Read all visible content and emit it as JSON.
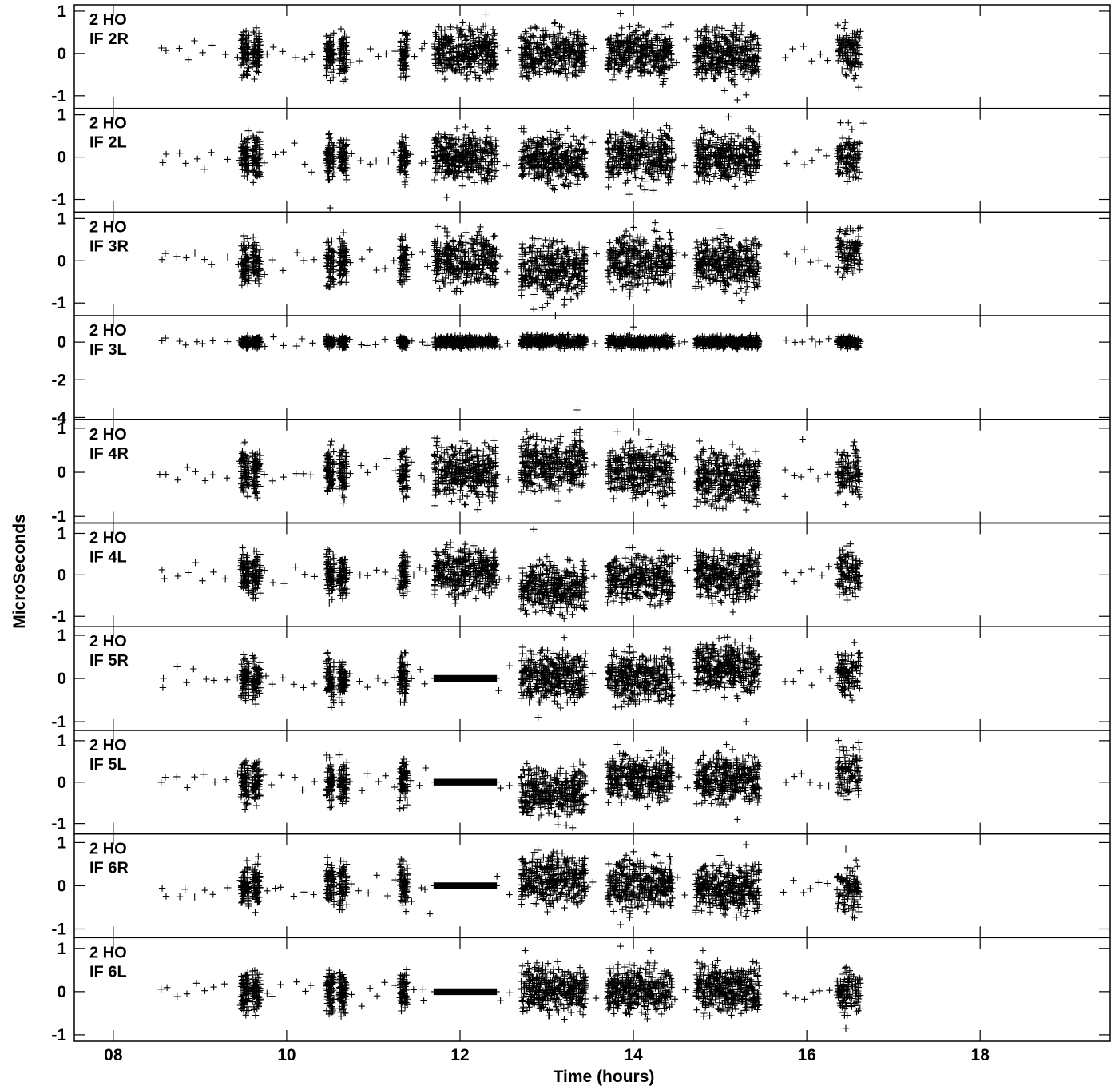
{
  "chart_data": {
    "type": "scatter",
    "marker": "plus",
    "xlabel": "Time (hours)",
    "ylabel": "MicroSeconds",
    "xlim": [
      7.55,
      19.5
    ],
    "x_ticks": [
      8,
      10,
      12,
      14,
      16,
      18
    ],
    "x_tick_labels": [
      "08",
      "10",
      "12",
      "14",
      "16",
      "18"
    ],
    "grid": false,
    "legend": "none",
    "panels": [
      {
        "label_line1": "2 HO",
        "label_line2": "IF 2R",
        "ylim": [
          -1.3,
          1.15
        ],
        "y_ticks": [
          -1,
          0,
          1
        ],
        "y_tick_labels": [
          "-1",
          "0",
          "1"
        ],
        "spread": 0.28,
        "scan_offsets": [
          0,
          0,
          0,
          0,
          0
        ],
        "flat_scan": false,
        "outliers": [
          [
            12.3,
            0.93
          ],
          [
            13.85,
            0.95
          ],
          [
            15.05,
            -0.88
          ],
          [
            15.2,
            -1.1
          ],
          [
            15.3,
            -0.98
          ],
          [
            16.6,
            -0.8
          ]
        ]
      },
      {
        "label_line1": "2 HO",
        "label_line2": "IF 2L",
        "ylim": [
          -1.3,
          1.15
        ],
        "y_ticks": [
          -1,
          0,
          1
        ],
        "y_tick_labels": [
          "-1",
          "0",
          "1"
        ],
        "spread": 0.28,
        "scan_offsets": [
          0,
          -0.05,
          0,
          0,
          0
        ],
        "flat_scan": false,
        "outliers": [
          [
            10.5,
            -1.2
          ],
          [
            11.85,
            -0.95
          ],
          [
            15.1,
            0.95
          ],
          [
            16.65,
            0.8
          ],
          [
            13.95,
            -0.88
          ]
        ]
      },
      {
        "label_line1": "2 HO",
        "label_line2": "IF 3R",
        "ylim": [
          -1.3,
          1.15
        ],
        "y_ticks": [
          -1,
          0,
          1
        ],
        "y_tick_labels": [
          "-1",
          "0",
          "1"
        ],
        "spread": 0.3,
        "scan_offsets": [
          0,
          -0.2,
          0,
          -0.05,
          0.2
        ],
        "flat_scan": false,
        "outliers": [
          [
            12.85,
            -1.15
          ],
          [
            12.95,
            -1.1
          ],
          [
            13.2,
            -1.05
          ],
          [
            14.25,
            0.9
          ],
          [
            15.25,
            -0.95
          ]
        ]
      },
      {
        "label_line1": "2 HO",
        "label_line2": "IF 3L",
        "ylim": [
          -4.1,
          1.4
        ],
        "y_ticks": [
          -4,
          -2,
          0
        ],
        "y_tick_labels": [
          "-4",
          "-2",
          "0"
        ],
        "spread": 0.15,
        "scan_offsets": [
          0,
          0.05,
          0,
          0,
          0
        ],
        "flat_scan": false,
        "outliers": [
          [
            13.1,
            1.4
          ],
          [
            14.0,
            0.8
          ],
          [
            16.1,
            -0.1
          ],
          [
            13.35,
            -3.6
          ]
        ]
      },
      {
        "label_line1": "2 HO",
        "label_line2": "IF 4R",
        "ylim": [
          -1.15,
          1.2
        ],
        "y_ticks": [
          -1,
          0,
          1
        ],
        "y_tick_labels": [
          "-1",
          "0",
          "1"
        ],
        "spread": 0.3,
        "scan_offsets": [
          0,
          0.18,
          0.05,
          -0.1,
          0
        ],
        "flat_scan": false,
        "outliers": [
          [
            15.95,
            0.75
          ],
          [
            15.75,
            -0.55
          ],
          [
            15.3,
            -0.85
          ],
          [
            14.35,
            -0.75
          ]
        ]
      },
      {
        "label_line1": "2 HO",
        "label_line2": "IF 4L",
        "ylim": [
          -1.25,
          1.25
        ],
        "y_ticks": [
          -1,
          0,
          1
        ],
        "y_tick_labels": [
          "-1",
          "0",
          "1"
        ],
        "spread": 0.28,
        "scan_offsets": [
          0.1,
          -0.3,
          -0.1,
          0,
          0.05
        ],
        "flat_scan": false,
        "outliers": [
          [
            12.85,
            1.1
          ],
          [
            13.2,
            -1.05
          ],
          [
            15.15,
            -0.9
          ],
          [
            13.95,
            0.65
          ],
          [
            12.75,
            -0.85
          ]
        ]
      },
      {
        "label_line1": "2 HO",
        "label_line2": "IF 5R",
        "ylim": [
          -1.2,
          1.2
        ],
        "y_ticks": [
          -1,
          0,
          1
        ],
        "y_tick_labels": [
          "-1",
          "0",
          "1"
        ],
        "spread": 0.28,
        "scan_offsets": [
          0,
          0.05,
          0,
          0.25,
          0.1
        ],
        "flat_scan": true,
        "outliers": [
          [
            13.2,
            0.95
          ],
          [
            15.3,
            -1.0
          ],
          [
            12.9,
            -0.9
          ],
          [
            15.05,
            0.95
          ]
        ]
      },
      {
        "label_line1": "2 HO",
        "label_line2": "IF 5L",
        "ylim": [
          -1.25,
          1.25
        ],
        "y_ticks": [
          -1,
          0,
          1
        ],
        "y_tick_labels": [
          "-1",
          "0",
          "1"
        ],
        "spread": 0.28,
        "scan_offsets": [
          0,
          -0.25,
          0.1,
          0.1,
          0.25
        ],
        "flat_scan": true,
        "outliers": [
          [
            13.3,
            -1.1
          ],
          [
            15.2,
            -0.9
          ],
          [
            16.6,
            0.95
          ],
          [
            14.3,
            0.65
          ]
        ]
      },
      {
        "label_line1": "2 HO",
        "label_line2": "IF 6R",
        "ylim": [
          -1.2,
          1.2
        ],
        "y_ticks": [
          -1,
          0,
          1
        ],
        "y_tick_labels": [
          "-1",
          "0",
          "1"
        ],
        "spread": 0.28,
        "scan_offsets": [
          0,
          0.15,
          0.05,
          -0.05,
          -0.1
        ],
        "flat_scan": true,
        "outliers": [
          [
            15.3,
            0.95
          ],
          [
            16.45,
            0.85
          ],
          [
            13.85,
            -0.9
          ],
          [
            11.65,
            -0.65
          ]
        ]
      },
      {
        "label_line1": "2 HO",
        "label_line2": "IF 6L",
        "ylim": [
          -1.15,
          1.25
        ],
        "y_ticks": [
          -1,
          0,
          1
        ],
        "y_tick_labels": [
          "-1",
          "0",
          "1"
        ],
        "spread": 0.26,
        "scan_offsets": [
          0,
          0.05,
          0.05,
          0.05,
          0
        ],
        "flat_scan": true,
        "outliers": [
          [
            12.75,
            0.95
          ],
          [
            13.85,
            1.05
          ],
          [
            14.2,
            0.95
          ],
          [
            14.8,
            0.95
          ],
          [
            16.45,
            -0.85
          ]
        ]
      }
    ],
    "sparse_points": [
      8.55,
      8.6,
      8.75,
      8.85,
      8.95,
      9.05,
      9.15,
      9.3,
      9.45,
      9.75,
      9.85,
      9.95,
      10.1,
      10.2,
      10.3,
      10.75,
      10.85,
      10.95,
      11.05,
      11.15,
      11.25,
      11.45,
      11.55,
      11.6,
      12.45,
      12.55,
      13.45,
      13.55,
      14.5,
      14.6,
      15.75,
      15.85,
      15.95,
      16.05,
      16.15,
      16.25
    ]
  }
}
